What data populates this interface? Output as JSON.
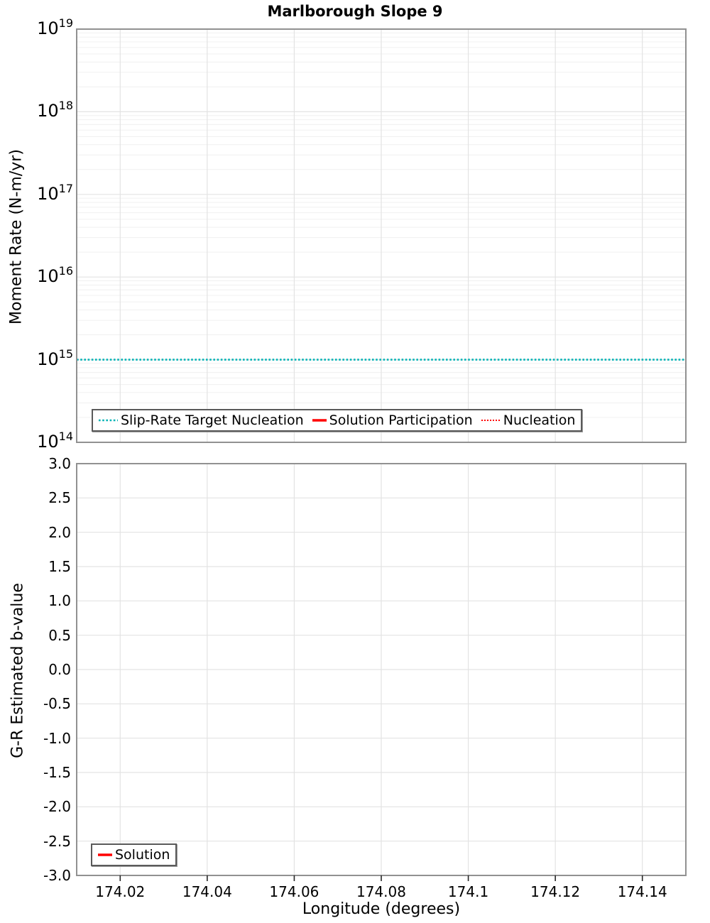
{
  "colors": {
    "teal": "#00b3b5",
    "red": "#ff0000",
    "grid_major": "#e3e3e3",
    "grid_minor": "#f0f0f0",
    "axis_border": "#919191",
    "tick_mark": "#262626",
    "text": "#000000",
    "legend_border": "#5a5a5a"
  },
  "chart_data": [
    {
      "id": "moment-rate",
      "type": "line",
      "title": "Marlborough Slope 9",
      "xlabel": "",
      "ylabel": "Moment Rate (N-m/yr)",
      "yscale": "log",
      "ylim": [
        100000000000000.0,
        1e+19
      ],
      "ytick_exponents": [
        19,
        18,
        17,
        16,
        15,
        14
      ],
      "xlim": [
        174.01,
        174.15
      ],
      "xticks": [
        174.02,
        174.04,
        174.06,
        174.08,
        174.1,
        174.12,
        174.14
      ],
      "xtick_labels": [],
      "xtick_labels_visible": false,
      "grid": true,
      "legend_position": "lower-left",
      "series": [
        {
          "name": "Slip-Rate Target Nucleation",
          "color": "#00b3b5",
          "line_style": "dotted",
          "line_width": 2.6,
          "data": "constant",
          "constant_y": 1000000000000000.0
        },
        {
          "name": "Solution Participation",
          "color": "#ff0000",
          "line_style": "solid",
          "line_width": 3.5,
          "data": "none"
        },
        {
          "name": "Nucleation",
          "color": "#ff0000",
          "line_style": "dotted",
          "line_width": 2,
          "data": "none"
        }
      ]
    },
    {
      "id": "b-value",
      "type": "line",
      "title": "",
      "xlabel": "Longitude (degrees)",
      "ylabel": "G-R Estimated b-value",
      "yscale": "linear",
      "ylim": [
        -3.0,
        3.0
      ],
      "yticks": [
        3.0,
        2.5,
        2.0,
        1.5,
        1.0,
        0.5,
        0.0,
        -0.5,
        -1.0,
        -1.5,
        -2.0,
        -2.5,
        -3.0
      ],
      "ytick_labels": [
        "3.0",
        "2.5",
        "2.0",
        "1.5",
        "1.0",
        "0.5",
        "0.0",
        "-0.5",
        "-1.0",
        "-1.5",
        "-2.0",
        "-2.5",
        "-3.0"
      ],
      "xlim": [
        174.01,
        174.15
      ],
      "xticks": [
        174.02,
        174.04,
        174.06,
        174.08,
        174.1,
        174.12,
        174.14
      ],
      "xtick_labels": [
        "174.02",
        "174.04",
        "174.06",
        "174.08",
        "174.1",
        "174.12",
        "174.14"
      ],
      "xtick_labels_visible": true,
      "grid": true,
      "legend_position": "lower-left",
      "series": [
        {
          "name": "Solution",
          "color": "#ff0000",
          "line_style": "solid",
          "line_width": 3.5,
          "data": "none"
        }
      ]
    }
  ]
}
